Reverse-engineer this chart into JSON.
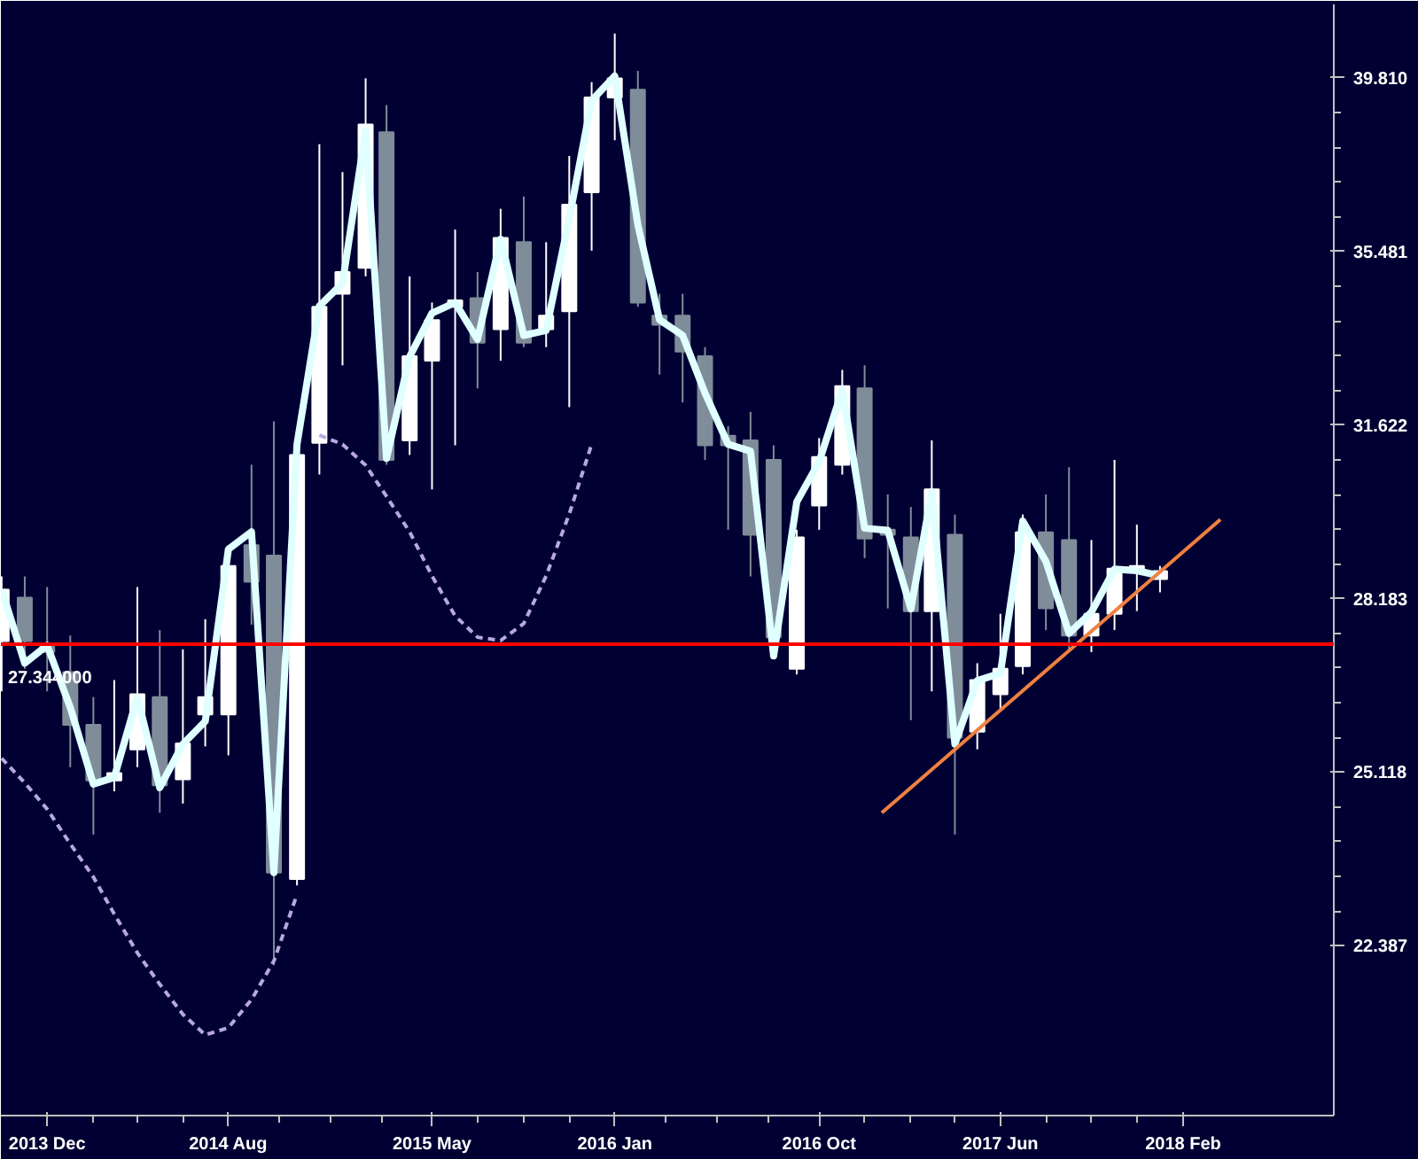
{
  "chart_data": {
    "type": "candlestick",
    "x": [
      "2013-10",
      "2013-11",
      "2013-12",
      "2014-01",
      "2014-02",
      "2014-03",
      "2014-04",
      "2014-05",
      "2014-06",
      "2014-07",
      "2014-08",
      "2014-09",
      "2014-10",
      "2014-11",
      "2014-12",
      "2015-01",
      "2015-02",
      "2015-03",
      "2015-04",
      "2015-05",
      "2015-06",
      "2015-07",
      "2015-08",
      "2015-09",
      "2015-10",
      "2015-11",
      "2015-12",
      "2016-01",
      "2016-02",
      "2016-03",
      "2016-04",
      "2016-05",
      "2016-06",
      "2016-07",
      "2016-08",
      "2016-09",
      "2016-10",
      "2016-11",
      "2016-12",
      "2017-01",
      "2017-02",
      "2017-03",
      "2017-04",
      "2017-05",
      "2017-06",
      "2017-07",
      "2017-08",
      "2017-09",
      "2017-10",
      "2017-11",
      "2017-12",
      "2018-01"
    ],
    "ohlc": [
      [
        27.4,
        28.6,
        26.5,
        28.35
      ],
      [
        28.2,
        28.6,
        26.9,
        27.4
      ],
      [
        27.3,
        28.4,
        26.5,
        27.2
      ],
      [
        26.84,
        27.5,
        25.2,
        25.92
      ],
      [
        25.92,
        26.4,
        24.1,
        24.98
      ],
      [
        24.98,
        26.7,
        24.8,
        25.1
      ],
      [
        25.5,
        28.4,
        25.2,
        26.45
      ],
      [
        26.4,
        27.6,
        24.45,
        24.9
      ],
      [
        25.0,
        27.25,
        24.6,
        25.6
      ],
      [
        26.1,
        27.8,
        25.55,
        26.4
      ],
      [
        26.1,
        29.2,
        25.4,
        28.8
      ],
      [
        29.2,
        30.8,
        27.7,
        28.5
      ],
      [
        29.0,
        31.7,
        22.1,
        23.5
      ],
      [
        23.4,
        31.0,
        23.3,
        31.0
      ],
      [
        31.25,
        38.1,
        30.6,
        34.2
      ],
      [
        34.5,
        37.4,
        32.9,
        35.0
      ],
      [
        35.1,
        39.8,
        34.9,
        38.6
      ],
      [
        38.4,
        39.1,
        30.8,
        30.9
      ],
      [
        31.3,
        34.9,
        31.0,
        33.1
      ],
      [
        33.0,
        34.3,
        30.3,
        33.9
      ],
      [
        34.2,
        36.0,
        31.2,
        34.35
      ],
      [
        34.4,
        35.0,
        32.4,
        33.4
      ],
      [
        33.7,
        36.5,
        33.0,
        35.8
      ],
      [
        35.7,
        36.8,
        33.3,
        33.4
      ],
      [
        33.7,
        35.7,
        33.3,
        34.0
      ],
      [
        34.1,
        37.8,
        32.0,
        36.6
      ],
      [
        36.9,
        39.7,
        35.5,
        39.3
      ],
      [
        39.3,
        41.0,
        38.2,
        39.8
      ],
      [
        39.5,
        40.0,
        34.2,
        34.3
      ],
      [
        34.0,
        34.5,
        32.7,
        33.8
      ],
      [
        34.0,
        34.5,
        32.1,
        33.2
      ],
      [
        33.1,
        33.3,
        30.9,
        31.2
      ],
      [
        31.4,
        31.6,
        29.5,
        31.2
      ],
      [
        31.3,
        31.9,
        28.6,
        29.4
      ],
      [
        30.9,
        31.2,
        27.1,
        27.47
      ],
      [
        26.9,
        29.5,
        26.8,
        29.35
      ],
      [
        29.98,
        31.35,
        29.5,
        30.96
      ],
      [
        30.8,
        32.8,
        30.6,
        32.45
      ],
      [
        32.4,
        32.9,
        28.95,
        29.33
      ],
      [
        29.5,
        30.2,
        28.0,
        29.4
      ],
      [
        29.35,
        29.95,
        26.0,
        27.95
      ],
      [
        27.95,
        31.3,
        26.5,
        30.3
      ],
      [
        29.4,
        29.8,
        24.1,
        25.7
      ],
      [
        25.8,
        27.0,
        25.5,
        26.7
      ],
      [
        26.45,
        27.9,
        26.2,
        26.9
      ],
      [
        26.95,
        29.8,
        26.8,
        29.45
      ],
      [
        29.45,
        30.2,
        27.6,
        28.0
      ],
      [
        29.3,
        30.75,
        27.2,
        27.5
      ],
      [
        27.5,
        29.3,
        27.2,
        27.9
      ],
      [
        27.9,
        30.9,
        27.6,
        28.75
      ],
      [
        28.75,
        29.6,
        27.95,
        28.8
      ],
      [
        28.55,
        28.8,
        28.3,
        28.7
      ]
    ],
    "colors": [
      "#ffffff",
      "#7f8c99",
      "#7f8c99",
      "#7f8c99",
      "#7f8c99",
      "#ffffff",
      "#ffffff",
      "#7f8c99",
      "#ffffff",
      "#ffffff",
      "#ffffff",
      "#7f8c99",
      "#7f8c99",
      "#ffffff",
      "#ffffff",
      "#ffffff",
      "#ffffff",
      "#7f8c99",
      "#ffffff",
      "#ffffff",
      "#ffffff",
      "#7f8c99",
      "#ffffff",
      "#7f8c99",
      "#ffffff",
      "#ffffff",
      "#ffffff",
      "#ffffff",
      "#7f8c99",
      "#7f8c99",
      "#7f8c99",
      "#7f8c99",
      "#7f8c99",
      "#7f8c99",
      "#7f8c99",
      "#ffffff",
      "#ffffff",
      "#ffffff",
      "#7f8c99",
      "#7f8c99",
      "#7f8c99",
      "#ffffff",
      "#7f8c99",
      "#ffffff",
      "#ffffff",
      "#ffffff",
      "#7f8c99",
      "#7f8c99",
      "#ffffff",
      "#ffffff",
      "#ffffff",
      "#ffffff"
    ],
    "series": [
      {
        "type": "line",
        "color": "#e0ffff",
        "line_style": "solid",
        "x": [
          "2013-10",
          "2013-11",
          "2013-12",
          "2014-01",
          "2014-02",
          "2014-03",
          "2014-04",
          "2014-05",
          "2014-06",
          "2014-07",
          "2014-08",
          "2014-09",
          "2014-10",
          "2014-11",
          "2014-12",
          "2015-01",
          "2015-02",
          "2015-03",
          "2015-04",
          "2015-05",
          "2015-06",
          "2015-07",
          "2015-08",
          "2015-09",
          "2015-10",
          "2015-11",
          "2015-12",
          "2016-01",
          "2016-02",
          "2016-03",
          "2016-04",
          "2016-05",
          "2016-06",
          "2016-07",
          "2016-08",
          "2016-09",
          "2016-10",
          "2016-11",
          "2016-12",
          "2017-01",
          "2017-02",
          "2017-03",
          "2017-04",
          "2017-05",
          "2017-06",
          "2017-07",
          "2017-08",
          "2017-09",
          "2017-10",
          "2017-11",
          "2017-12",
          "2018-01"
        ],
        "values": [
          28.35,
          27.0,
          27.32,
          26.22,
          24.92,
          25.03,
          26.4,
          24.86,
          25.59,
          25.98,
          29.12,
          29.46,
          23.5,
          31.22,
          34.22,
          34.74,
          38.45,
          30.93,
          33.09,
          34.06,
          34.3,
          33.47,
          35.77,
          33.56,
          33.67,
          36.27,
          39.22,
          39.86,
          36.11,
          33.91,
          33.56,
          32.3,
          31.22,
          31.08,
          27.13,
          30.05,
          30.86,
          32.37,
          29.53,
          29.49,
          27.99,
          30.25,
          25.59,
          26.69,
          26.82,
          29.67,
          28.89,
          27.54,
          27.93,
          28.74,
          28.71,
          28.61
        ]
      },
      {
        "type": "line",
        "color": "#b8a8e0",
        "line_style": "dashed",
        "x": [
          "2013-10",
          "2013-11",
          "2013-12",
          "2014-01",
          "2014-02",
          "2014-03",
          "2014-04",
          "2014-05",
          "2014-06",
          "2014-07",
          "2014-08",
          "2014-09",
          "2014-10",
          "2014-11"
        ],
        "values": [
          25.35,
          24.94,
          24.51,
          23.95,
          23.43,
          22.86,
          22.28,
          21.82,
          21.39,
          21.1,
          21.2,
          21.6,
          22.16,
          23.16
        ]
      },
      {
        "type": "line",
        "color": "#b8a8e0",
        "line_style": "dashed",
        "x": [
          "2014-12",
          "2015-01",
          "2015-02",
          "2015-03",
          "2015-04",
          "2015-05",
          "2015-06",
          "2015-07",
          "2015-08",
          "2015-09",
          "2015-10",
          "2015-11",
          "2015-12"
        ],
        "values": [
          31.41,
          31.22,
          30.79,
          30.16,
          29.46,
          28.61,
          27.86,
          27.47,
          27.41,
          27.72,
          28.61,
          29.81,
          31.22
        ]
      },
      {
        "type": "line",
        "color": "#f08040",
        "line_style": "solid",
        "x": [
          "2016-12-24",
          "2018-03-23"
        ],
        "values": [
          24.45,
          29.7
        ]
      }
    ],
    "ref_lines": [
      {
        "axis": "y",
        "value": 27.344,
        "label": "27.344000",
        "color": "#ff0000"
      }
    ],
    "log": "y",
    "ylim": [
      20.0,
      41.8
    ],
    "yticks": [
      {
        "value": 39.81,
        "label": "39.810"
      },
      35.481,
      31.622,
      28.183,
      25.118,
      22.387
    ],
    "xlim": [
      "2013-09-30",
      "2018-08-22"
    ],
    "xticks": [
      {
        "value": "2013-12",
        "label": "2013 Dec"
      },
      {
        "value": "2014-08",
        "label": "2014 Aug"
      },
      {
        "value": "2015-05",
        "label": "2015 May"
      },
      {
        "value": "2016-01",
        "label": "2016 Jan"
      },
      {
        "value": "2016-10",
        "label": "2016 Oct"
      },
      {
        "value": "2017-06",
        "label": "2017 Jun"
      },
      {
        "value": "2018-02",
        "label": "2018 Feb"
      }
    ],
    "grid": false
  }
}
